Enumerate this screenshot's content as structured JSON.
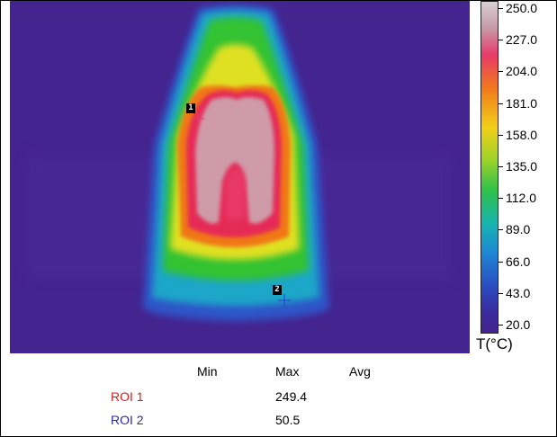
{
  "thermal_image": {
    "markers": [
      {
        "id": "1",
        "crosshair_color": "#e0406a"
      },
      {
        "id": "2",
        "crosshair_color": "#2a3ad0"
      }
    ]
  },
  "color_scale": {
    "tick_labels": [
      "250.0",
      "227.0",
      "204.0",
      "181.0",
      "158.0",
      "135.0",
      "112.0",
      "89.0",
      "66.0",
      "43.0",
      "20.0"
    ],
    "unit_label": "T(°C)",
    "min_value": 20.0,
    "max_value": 250.0
  },
  "roi_table": {
    "headers": {
      "min": "Min",
      "max": "Max",
      "avg": "Avg"
    },
    "rows": [
      {
        "label": "ROI 1",
        "max": "249.4",
        "color": "#e01818"
      },
      {
        "label": "ROI 2",
        "max": "50.5",
        "color": "#2a2aa8"
      }
    ]
  }
}
